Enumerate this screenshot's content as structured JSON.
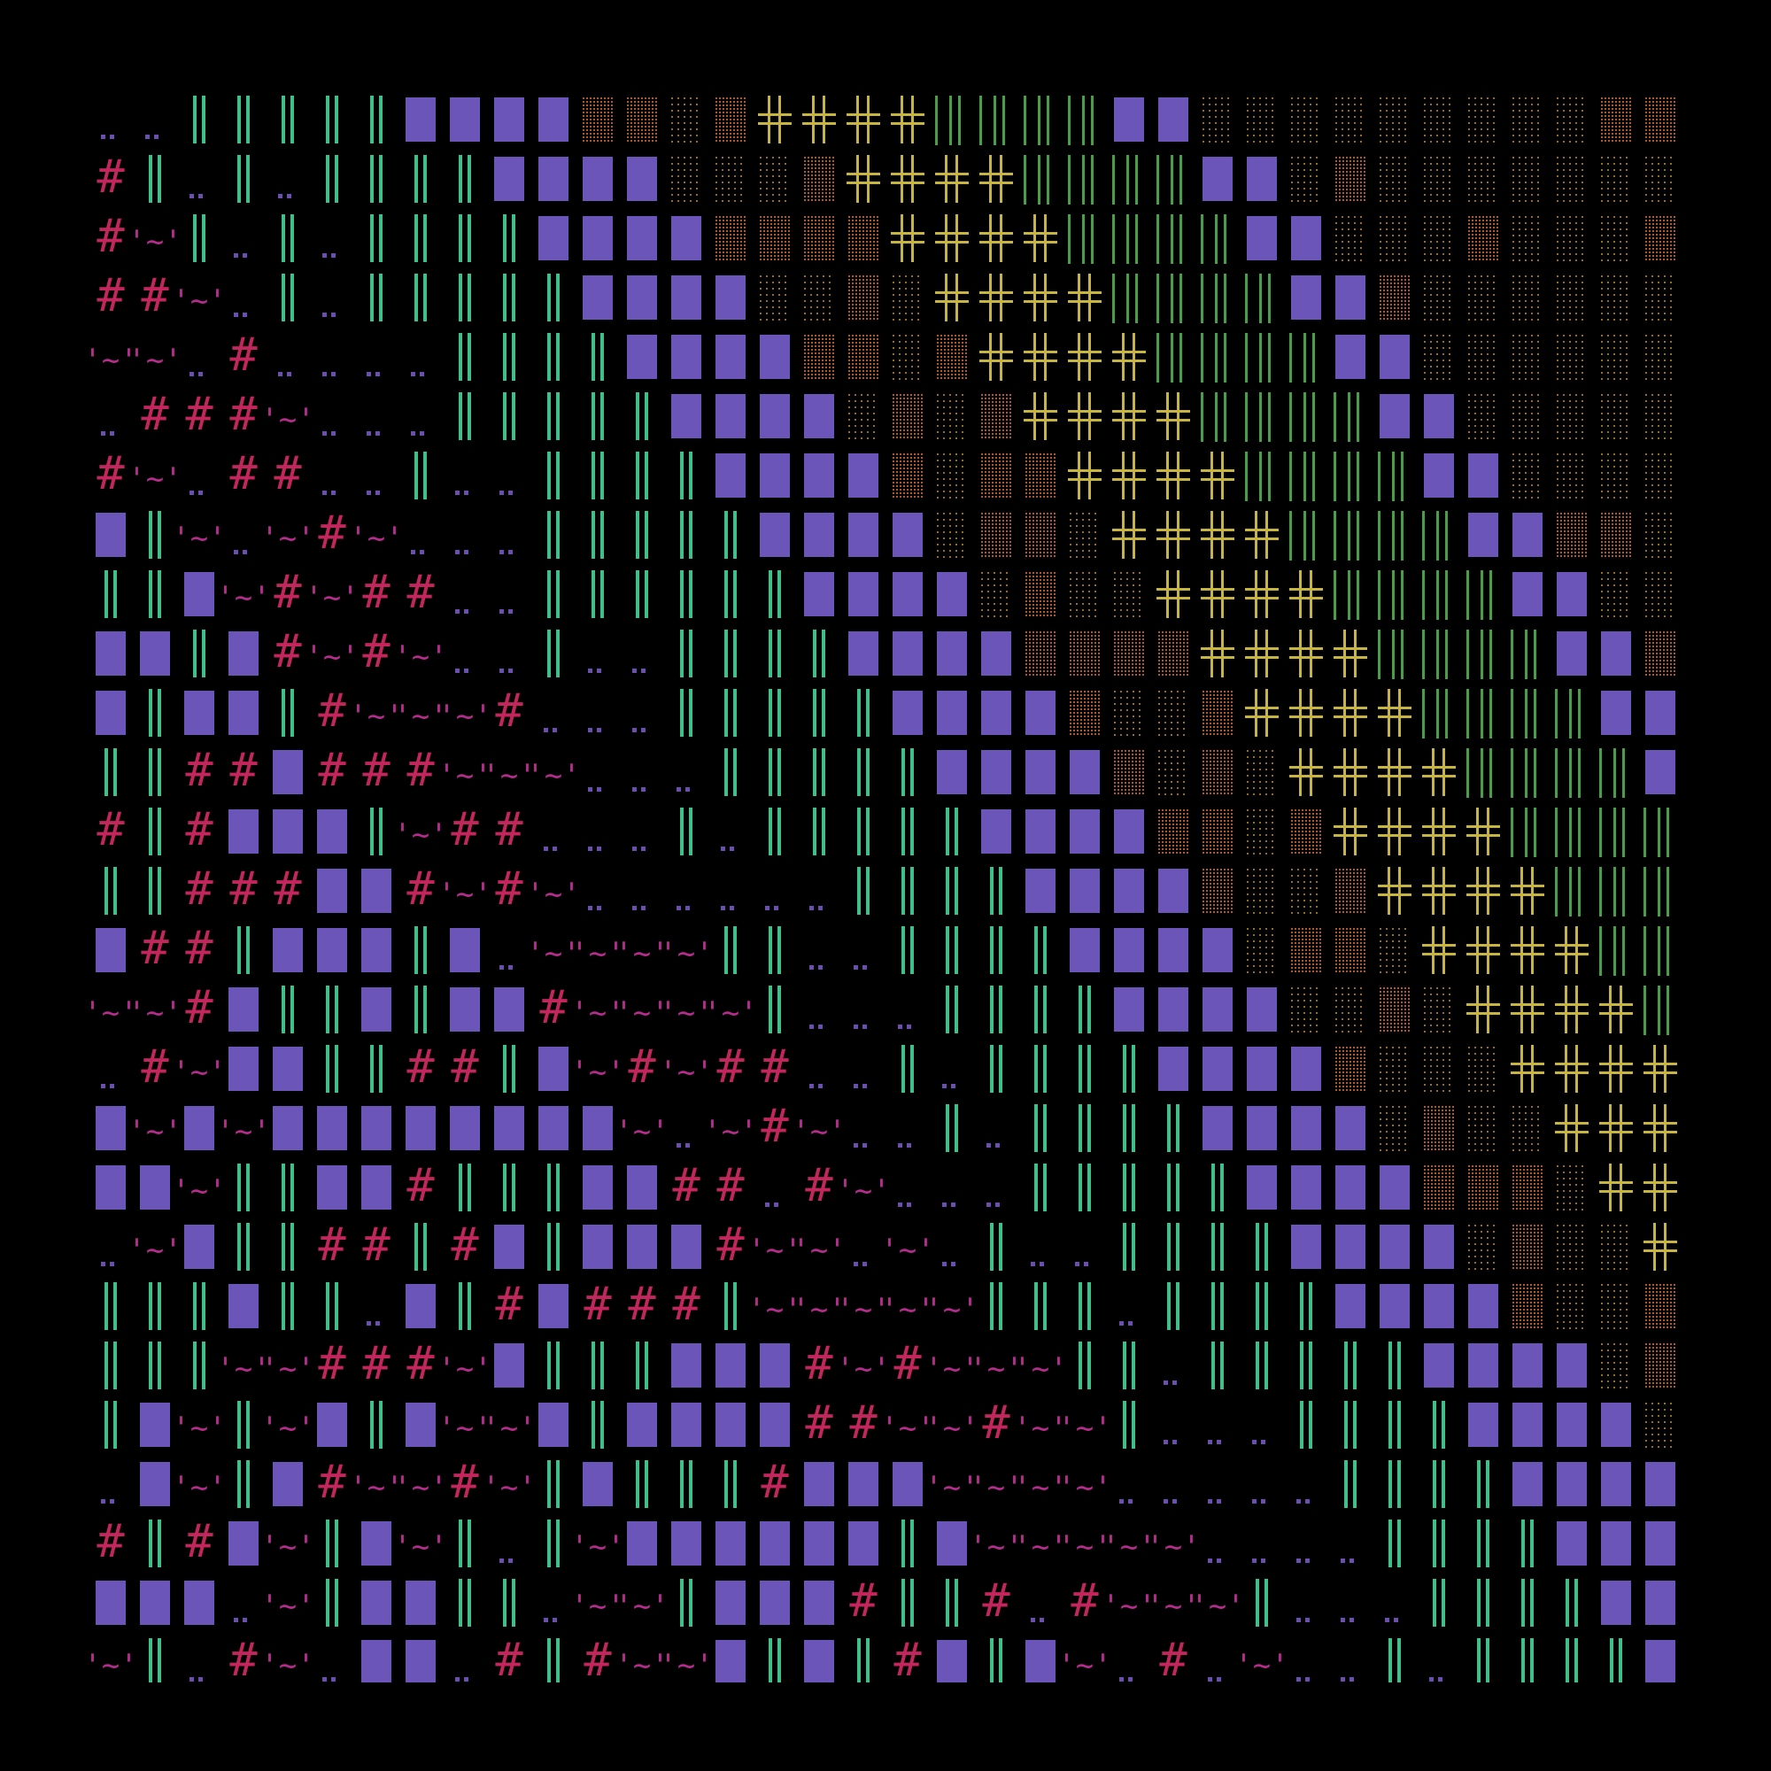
{
  "artwork": {
    "background_color": "#000000",
    "glyph_legend": [
      {
        "key": "hash",
        "glyph": "#",
        "color": "#c2265c",
        "icon": "hash-glyph-icon"
      },
      {
        "key": "wave",
        "glyph": "'~'",
        "color": "#b52c8c",
        "icon": "wave-glyph-icon"
      },
      {
        "key": "dots",
        "glyph": "..",
        "color": "#6a4fb0",
        "icon": "dots-glyph-icon"
      },
      {
        "key": "pipes",
        "glyph": "||",
        "color": "#3fbf8a",
        "icon": "double-bar-glyph-icon"
      },
      {
        "key": "block",
        "glyph": "▓",
        "color": "#6c55b8",
        "icon": "stipple-block-icon"
      },
      {
        "key": "sparse",
        "glyph": "░",
        "color": "#9a6a1e",
        "icon": "sparse-dot-icon"
      },
      {
        "key": "dense",
        "glyph": "▒",
        "color": "#b0582a",
        "icon": "dense-dot-icon"
      },
      {
        "key": "cross",
        "glyph": "╬",
        "color": "#c8b441",
        "icon": "box-cross-icon"
      },
      {
        "key": "bars",
        "glyph": "| ||",
        "color": "#4a9e4a",
        "icon": "bar-stripes-icon"
      }
    ]
  }
}
